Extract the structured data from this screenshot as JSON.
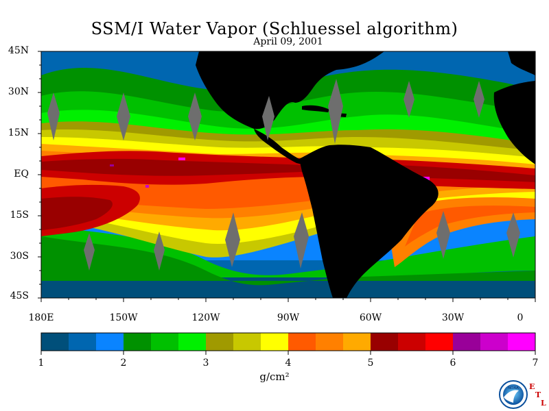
{
  "title": "SSM/I Water Vapor (Schluessel algorithm)",
  "date": "April 09, 2001",
  "lat_labels": [
    "45N",
    "30N",
    "15N",
    "EQ",
    "15S",
    "30S",
    "45S"
  ],
  "lon_labels": [
    "180E",
    "150W",
    "120W",
    "90W",
    "60W",
    "30W",
    "0"
  ],
  "colorbar": {
    "ticks": [
      "1",
      "2",
      "3",
      "4",
      "5",
      "6",
      "7"
    ],
    "units": "g/cm²",
    "colors": [
      "#004f7a",
      "#0066b0",
      "#0a84ff",
      "#009100",
      "#00c000",
      "#00f000",
      "#a09a00",
      "#c8c800",
      "#ffff00",
      "#ff5a00",
      "#ff8000",
      "#ffaa00",
      "#990000",
      "#cc0000",
      "#ff0000",
      "#990099",
      "#cc00cc",
      "#ff00ff"
    ]
  },
  "logo": {
    "name": "NOAA",
    "letters": [
      "E",
      "T",
      "L"
    ]
  }
}
